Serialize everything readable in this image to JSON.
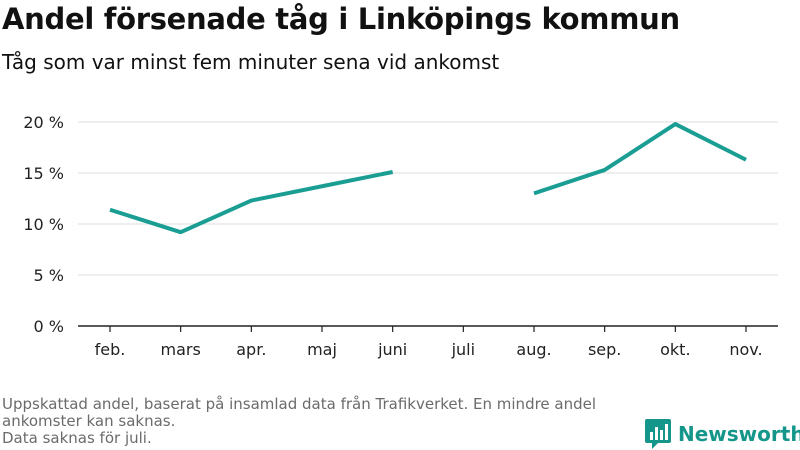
{
  "header": {
    "title": "Andel försenade tåg i Linköpings kommun",
    "subtitle": "Tåg som var minst fem minuter sena vid ankomst"
  },
  "footnote": {
    "line1": "Uppskattad andel, baserat på insamlad data från Trafikverket. En mindre andel",
    "line2": "ankomster kan saknas.",
    "line3": "Data saknas för juli."
  },
  "logo": {
    "text": "Newsworthy",
    "icon": "bar-chart-bubble-icon",
    "color": "#15968a"
  },
  "chart_data": {
    "type": "line",
    "title": "Andel försenade tåg i Linköpings kommun",
    "subtitle": "Tåg som var minst fem minuter sena vid ankomst",
    "categories": [
      "feb.",
      "mars",
      "apr.",
      "maj",
      "juni",
      "juli",
      "aug.",
      "sep.",
      "okt.",
      "nov."
    ],
    "series": [
      {
        "values": [
          11.4,
          9.2,
          12.3,
          13.7,
          15.1,
          null,
          13.0,
          15.3,
          19.8,
          16.3
        ],
        "color": "#1a9e94"
      }
    ],
    "yticks": [
      0,
      5,
      10,
      15,
      20
    ],
    "ytick_labels": [
      "0 %",
      "5 %",
      "10 %",
      "15 %",
      "20 %"
    ],
    "ylim": [
      0,
      20
    ],
    "grid": true,
    "legend": "none"
  }
}
